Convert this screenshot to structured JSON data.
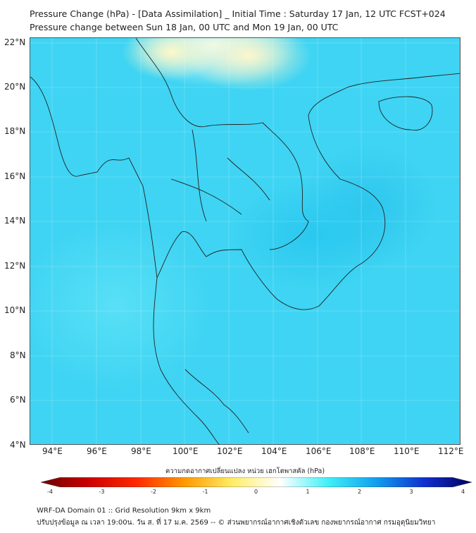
{
  "title": {
    "line1": "Pressure Change (hPa) - [Data Assimilation] _ Initial Time : Saturday 17 Jan, 12 UTC FCST+024",
    "line2": "Pressure change between Sun 18 Jan, 00 UTC and Mon 19 Jan, 00 UTC"
  },
  "map": {
    "lat_labels": [
      "22°N",
      "20°N",
      "18°N",
      "16°N",
      "14°N",
      "12°N",
      "10°N",
      "8°N",
      "6°N",
      "4°N"
    ],
    "lon_labels": [
      "94°E",
      "96°E",
      "98°E",
      "100°E",
      "102°E",
      "104°E",
      "106°E",
      "108°E",
      "110°E",
      "112°E"
    ]
  },
  "colorbar": {
    "label": "ความกดอากาศเปลี่ยนแปลง หน่วย เฮกโตพาสคัล (hPa)",
    "ticks": [
      "-4",
      "-3",
      "-2",
      "-1",
      "0",
      "1",
      "2",
      "3",
      "4"
    ],
    "min": -4,
    "max": 4,
    "colors": [
      "#6b0000",
      "#cc0000",
      "#ff2a00",
      "#ff9900",
      "#ffee66",
      "#ffffff",
      "#40f0f8",
      "#10a0ee",
      "#1030d0",
      "#000060"
    ]
  },
  "footer": {
    "line1": "WRF-DA Domain 01 :: Grid Resolution 9km x 9km",
    "line2": "ปรับปรุงข้อมูล ณ เวลา 19:00น. วัน ส. ที่ 17 ม.ค. 2569 -- © ส่วนพยากรณ์อากาศเชิงตัวเลข กองพยากรณ์อากาศ กรมอุตุนิยมวิทยา"
  }
}
